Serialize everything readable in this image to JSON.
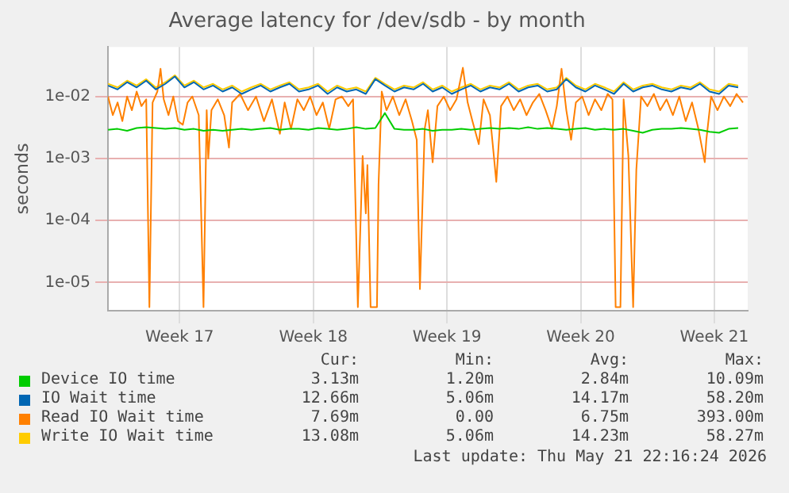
{
  "chart_data": {
    "type": "line",
    "title": "Average latency for /dev/sdb - by month",
    "ylabel": "seconds",
    "log": "y",
    "grid": true,
    "legend": "bottom",
    "marker": "none",
    "line_style": "solid",
    "xlim": [
      "2026-04-16T06:00",
      "2026-05-19T18:00"
    ],
    "xticks": [
      {
        "value": "2026-04-20",
        "label": "Week 17"
      },
      {
        "value": "2026-04-27",
        "label": "Week 18"
      },
      {
        "value": "2026-05-04",
        "label": "Week 19"
      },
      {
        "value": "2026-05-11",
        "label": "Week 20"
      },
      {
        "value": "2026-05-18",
        "label": "Week 21"
      }
    ],
    "ylim": [
      3.5e-06,
      0.063
    ],
    "yticks": [
      {
        "value": 1e-05,
        "label": "1e-05"
      },
      {
        "value": 0.0001,
        "label": "1e-04"
      },
      {
        "value": 0.001,
        "label": "1e-03"
      },
      {
        "value": 0.01,
        "label": "1e-02"
      }
    ],
    "x": [
      "2026-04-16T06:00",
      "2026-04-16T18:00",
      "2026-04-17T06:00",
      "2026-04-17T18:00",
      "2026-04-18T06:00",
      "2026-04-18T18:00",
      "2026-04-19T06:00",
      "2026-04-19T18:00",
      "2026-04-20T06:00",
      "2026-04-20T18:00",
      "2026-04-21T06:00",
      "2026-04-21T18:00",
      "2026-04-22T06:00",
      "2026-04-22T18:00",
      "2026-04-23T06:00",
      "2026-04-23T18:00",
      "2026-04-24T06:00",
      "2026-04-24T18:00",
      "2026-04-25T06:00",
      "2026-04-25T18:00",
      "2026-04-26T06:00",
      "2026-04-26T18:00",
      "2026-04-27T06:00",
      "2026-04-27T18:00",
      "2026-04-28T06:00",
      "2026-04-28T18:00",
      "2026-04-29T06:00",
      "2026-04-29T18:00",
      "2026-04-30T06:00",
      "2026-04-30T18:00",
      "2026-05-01T06:00",
      "2026-05-01T18:00",
      "2026-05-02T06:00",
      "2026-05-02T18:00",
      "2026-05-03T06:00",
      "2026-05-03T18:00",
      "2026-05-04T06:00",
      "2026-05-04T18:00",
      "2026-05-05T06:00",
      "2026-05-05T18:00",
      "2026-05-06T06:00",
      "2026-05-06T18:00",
      "2026-05-07T06:00",
      "2026-05-07T18:00",
      "2026-05-08T06:00",
      "2026-05-08T18:00",
      "2026-05-09T06:00",
      "2026-05-09T18:00",
      "2026-05-10T06:00",
      "2026-05-10T18:00",
      "2026-05-11T06:00",
      "2026-05-11T18:00",
      "2026-05-12T06:00",
      "2026-05-12T18:00",
      "2026-05-13T06:00",
      "2026-05-13T18:00",
      "2026-05-14T06:00",
      "2026-05-14T18:00",
      "2026-05-15T06:00",
      "2026-05-15T18:00",
      "2026-05-16T06:00",
      "2026-05-16T18:00",
      "2026-05-17T06:00",
      "2026-05-17T18:00",
      "2026-05-18T06:00",
      "2026-05-18T18:00",
      "2026-05-19T06:00"
    ],
    "series": [
      {
        "name": "Device IO time",
        "color": "#00cc00",
        "values": [
          0.0029,
          0.003,
          0.0028,
          0.0031,
          0.0032,
          0.0031,
          0.003,
          0.0031,
          0.0029,
          0.003,
          0.0028,
          0.0029,
          0.0028,
          0.0029,
          0.003,
          0.0029,
          0.003,
          0.0031,
          0.0029,
          0.003,
          0.003,
          0.0029,
          0.0031,
          0.003,
          0.0029,
          0.003,
          0.0032,
          0.003,
          0.0031,
          0.0054,
          0.003,
          0.0029,
          0.0029,
          0.003,
          0.0028,
          0.0029,
          0.0029,
          0.003,
          0.0029,
          0.003,
          0.0031,
          0.003,
          0.0031,
          0.003,
          0.0032,
          0.003,
          0.0031,
          0.003,
          0.0029,
          0.003,
          0.0031,
          0.0029,
          0.003,
          0.0029,
          0.003,
          0.0028,
          0.0026,
          0.0029,
          0.003,
          0.003,
          0.0031,
          0.003,
          0.0029,
          0.0027,
          0.0026,
          0.003,
          0.0031
        ]
      },
      {
        "name": "IO Wait time",
        "color": "#0066b3",
        "values": [
          0.015,
          0.013,
          0.017,
          0.014,
          0.018,
          0.013,
          0.016,
          0.021,
          0.014,
          0.017,
          0.013,
          0.015,
          0.012,
          0.014,
          0.011,
          0.013,
          0.015,
          0.012,
          0.014,
          0.016,
          0.012,
          0.013,
          0.015,
          0.011,
          0.014,
          0.012,
          0.013,
          0.011,
          0.019,
          0.015,
          0.012,
          0.014,
          0.013,
          0.016,
          0.012,
          0.014,
          0.011,
          0.013,
          0.015,
          0.012,
          0.014,
          0.013,
          0.016,
          0.012,
          0.014,
          0.015,
          0.012,
          0.013,
          0.019,
          0.014,
          0.012,
          0.015,
          0.013,
          0.011,
          0.016,
          0.012,
          0.014,
          0.015,
          0.013,
          0.012,
          0.014,
          0.013,
          0.016,
          0.012,
          0.011,
          0.015,
          0.014
        ]
      },
      {
        "name": "Read IO Wait time",
        "color": "#ff8000",
        "x": [
          "2026-04-16T06:00",
          "2026-04-16T12:00",
          "2026-04-16T18:00",
          "2026-04-17T00:00",
          "2026-04-17T06:00",
          "2026-04-17T12:00",
          "2026-04-17T18:00",
          "2026-04-18T00:00",
          "2026-04-18T06:00",
          "2026-04-18T10:00",
          "2026-04-18T14:00",
          "2026-04-18T20:00",
          "2026-04-19T00:00",
          "2026-04-19T04:00",
          "2026-04-19T10:00",
          "2026-04-19T16:00",
          "2026-04-19T22:00",
          "2026-04-20T04:00",
          "2026-04-20T10:00",
          "2026-04-20T16:00",
          "2026-04-21T00:00",
          "2026-04-21T06:00",
          "2026-04-21T10:00",
          "2026-04-21T12:00",
          "2026-04-21T16:00",
          "2026-04-22T00:00",
          "2026-04-22T08:00",
          "2026-04-22T14:00",
          "2026-04-22T18:00",
          "2026-04-23T04:00",
          "2026-04-23T14:00",
          "2026-04-24T00:00",
          "2026-04-24T10:00",
          "2026-04-24T20:00",
          "2026-04-25T06:00",
          "2026-04-25T12:00",
          "2026-04-25T20:00",
          "2026-04-26T04:00",
          "2026-04-26T12:00",
          "2026-04-26T20:00",
          "2026-04-27T04:00",
          "2026-04-27T12:00",
          "2026-04-27T20:00",
          "2026-04-28T04:00",
          "2026-04-28T12:00",
          "2026-04-28T20:00",
          "2026-04-29T02:00",
          "2026-04-29T08:00",
          "2026-04-29T14:00",
          "2026-04-29T18:00",
          "2026-04-29T20:00",
          "2026-04-30T00:00",
          "2026-04-30T08:00",
          "2026-04-30T10:00",
          "2026-04-30T14:00",
          "2026-04-30T20:00",
          "2026-05-01T04:00",
          "2026-05-01T12:00",
          "2026-05-01T20:00",
          "2026-05-02T04:00",
          "2026-05-02T10:00",
          "2026-05-02T14:00",
          "2026-05-02T20:00",
          "2026-05-03T00:00",
          "2026-05-03T06:00",
          "2026-05-03T12:00",
          "2026-05-03T20:00",
          "2026-05-04T04:00",
          "2026-05-04T12:00",
          "2026-05-04T20:00",
          "2026-05-05T02:00",
          "2026-05-05T08:00",
          "2026-05-05T16:00",
          "2026-05-05T22:00",
          "2026-05-06T06:00",
          "2026-05-06T14:00",
          "2026-05-06T20:00",
          "2026-05-07T04:00",
          "2026-05-07T12:00",
          "2026-05-07T20:00",
          "2026-05-08T04:00",
          "2026-05-08T12:00",
          "2026-05-08T20:00",
          "2026-05-09T04:00",
          "2026-05-09T12:00",
          "2026-05-09T18:00",
          "2026-05-10T00:00",
          "2026-05-10T06:00",
          "2026-05-10T12:00",
          "2026-05-10T18:00",
          "2026-05-11T02:00",
          "2026-05-11T10:00",
          "2026-05-11T18:00",
          "2026-05-12T02:00",
          "2026-05-12T10:00",
          "2026-05-12T16:00",
          "2026-05-12T20:00",
          "2026-05-13T02:00",
          "2026-05-13T06:00",
          "2026-05-13T12:00",
          "2026-05-13T18:00",
          "2026-05-13T22:00",
          "2026-05-14T04:00",
          "2026-05-14T12:00",
          "2026-05-14T20:00",
          "2026-05-15T04:00",
          "2026-05-15T12:00",
          "2026-05-15T20:00",
          "2026-05-16T04:00",
          "2026-05-16T12:00",
          "2026-05-16T20:00",
          "2026-05-17T04:00",
          "2026-05-17T12:00",
          "2026-05-17T14:00",
          "2026-05-17T20:00",
          "2026-05-18T04:00",
          "2026-05-18T12:00",
          "2026-05-18T20:00",
          "2026-05-19T04:00",
          "2026-05-19T12:00"
        ],
        "values": [
          0.01,
          0.005,
          0.008,
          0.004,
          0.01,
          0.006,
          0.012,
          0.007,
          0.009,
          4e-06,
          0.008,
          0.012,
          0.028,
          0.009,
          0.005,
          0.01,
          0.004,
          0.0035,
          0.008,
          0.01,
          0.005,
          4e-06,
          0.006,
          0.001,
          0.006,
          0.009,
          0.005,
          0.0015,
          0.008,
          0.011,
          0.006,
          0.01,
          0.004,
          0.009,
          0.0025,
          0.008,
          0.003,
          0.009,
          0.006,
          0.01,
          0.005,
          0.008,
          0.003,
          0.009,
          0.01,
          0.007,
          0.009,
          4e-06,
          0.0011,
          0.00013,
          0.00078,
          4e-06,
          4e-06,
          0.00038,
          0.012,
          0.006,
          0.01,
          0.005,
          0.009,
          0.004,
          0.002,
          7.8e-06,
          0.003,
          0.006,
          0.00087,
          0.007,
          0.01,
          0.006,
          0.009,
          0.029,
          0.008,
          0.004,
          0.0017,
          0.009,
          0.005,
          0.00042,
          0.007,
          0.01,
          0.006,
          0.009,
          0.005,
          0.008,
          0.011,
          0.006,
          0.003,
          0.007,
          0.028,
          0.006,
          0.002,
          0.008,
          0.01,
          0.005,
          0.009,
          0.006,
          0.011,
          0.009,
          4e-06,
          4e-06,
          0.009,
          0.0011,
          4e-06,
          0.00066,
          0.01,
          0.007,
          0.011,
          0.006,
          0.009,
          0.005,
          0.01,
          0.004,
          0.008,
          0.003,
          0.00087,
          0.002,
          0.01,
          0.006,
          0.01,
          0.007,
          0.011,
          0.008
        ]
      },
      {
        "name": "Write IO Wait time",
        "color": "#ffcc00",
        "values": [
          0.016,
          0.014,
          0.018,
          0.015,
          0.019,
          0.014,
          0.017,
          0.022,
          0.015,
          0.018,
          0.014,
          0.016,
          0.013,
          0.015,
          0.012,
          0.014,
          0.016,
          0.013,
          0.015,
          0.017,
          0.013,
          0.014,
          0.016,
          0.012,
          0.015,
          0.013,
          0.014,
          0.012,
          0.02,
          0.016,
          0.013,
          0.015,
          0.014,
          0.017,
          0.013,
          0.015,
          0.012,
          0.014,
          0.016,
          0.013,
          0.015,
          0.014,
          0.017,
          0.013,
          0.015,
          0.016,
          0.013,
          0.014,
          0.02,
          0.015,
          0.013,
          0.016,
          0.014,
          0.012,
          0.017,
          0.013,
          0.015,
          0.016,
          0.014,
          0.013,
          0.015,
          0.014,
          0.017,
          0.013,
          0.012,
          0.016,
          0.015
        ]
      }
    ],
    "annotations": [
      "Cur:",
      "Min:",
      "Avg:",
      "Max:",
      "3.13m",
      "1.20m",
      "2.84m",
      "10.09m",
      "12.66m",
      "5.06m",
      "14.17m",
      "58.20m",
      "7.69m",
      "0.00",
      "6.75m",
      "393.00m",
      "13.08m",
      "5.06m",
      "14.23m",
      "58.27m",
      "Last update: Thu May 21 22:16:24 2026"
    ]
  }
}
